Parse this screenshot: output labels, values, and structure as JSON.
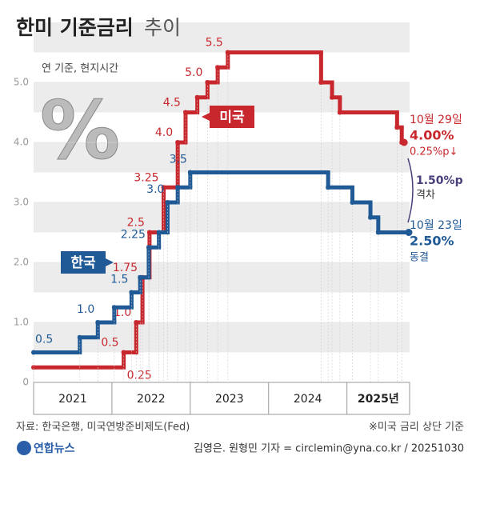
{
  "header": {
    "title": "한미 기준금리",
    "title_suffix": "추이",
    "note": "연 기준, 현지시간",
    "icon_text": "%"
  },
  "chart_data": {
    "type": "step",
    "xlim": [
      2021.0,
      2025.8
    ],
    "xticks": [
      2021,
      2022,
      2023,
      2024,
      {
        "value": 2025,
        "label": "2025년"
      }
    ],
    "ylim": [
      0,
      5.6
    ],
    "yticks": [
      0,
      {
        "value": 1,
        "label": "1.0"
      },
      {
        "value": 2,
        "label": "2.0"
      },
      {
        "value": 3,
        "label": "3.0"
      },
      {
        "value": 4,
        "label": "4.0"
      },
      {
        "value": 5,
        "label": "5.0"
      }
    ],
    "series": [
      {
        "name": "미국",
        "color": "#c8282d",
        "x": [
          2021.0,
          2022.15,
          2022.31,
          2022.39,
          2022.48,
          2022.66,
          2022.84,
          2022.94,
          2023.09,
          2023.22,
          2023.35,
          2023.48,
          2024.67,
          2024.81,
          2024.91,
          2025.64,
          2025.7,
          2025.73
        ],
        "values": [
          0.25,
          0.5,
          1.0,
          1.75,
          2.5,
          3.25,
          4.0,
          4.5,
          4.75,
          5.0,
          5.25,
          5.5,
          5.0,
          4.75,
          4.5,
          4.25,
          4.0,
          4.0
        ],
        "value_labels": [
          "0.25",
          "0.5",
          "1.0",
          "1.75",
          "2.5",
          "3.25",
          "4.0",
          "4.5",
          null,
          "5.0",
          null,
          "5.5",
          null,
          null,
          null,
          null,
          null,
          null
        ]
      },
      {
        "name": "한국",
        "color": "#1f5a96",
        "x": [
          2021.0,
          2021.59,
          2021.82,
          2022.03,
          2022.25,
          2022.36,
          2022.47,
          2022.6,
          2022.71,
          2022.84,
          2023.0,
          2024.76,
          2025.07,
          2025.3,
          2025.4,
          2025.79
        ],
        "values": [
          0.5,
          0.75,
          1.0,
          1.25,
          1.5,
          1.75,
          2.25,
          2.5,
          3.0,
          3.25,
          3.5,
          3.25,
          3.0,
          2.75,
          2.5,
          2.5
        ],
        "value_labels": [
          "0.5",
          null,
          "1.0",
          null,
          "1.5",
          null,
          "2.25",
          null,
          "3.0",
          null,
          "3.5",
          null,
          null,
          null,
          null,
          null
        ]
      }
    ],
    "annotations": {
      "us_date": "10월 29일",
      "us_rate": "4.00%",
      "us_change": "0.25%p↓",
      "gap": "1.50%p",
      "gap_label": "격차",
      "kr_date": "10월 23일",
      "kr_rate": "2.50%",
      "kr_change": "동결"
    }
  },
  "footer": {
    "source": "자료: 한국은행, 미국연방준비제도(Fed)",
    "note": "※미국 금리 상단 기준",
    "logo": "연합뉴스",
    "credit": "김영은. 원형민 기자 = circlemin@yna.co.kr / 20251030"
  }
}
